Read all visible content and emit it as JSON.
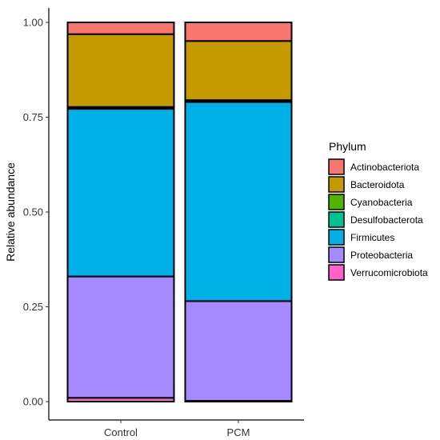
{
  "chart_data": {
    "type": "bar",
    "stacked": true,
    "title": "",
    "xlabel": "",
    "ylabel": "Relative abundance",
    "ylim": [
      0,
      1
    ],
    "yticks": [
      0,
      0.25,
      0.5,
      0.75,
      1
    ],
    "ytick_labels": [
      "0.00",
      "0.25",
      "0.50",
      "0.75",
      "1.00"
    ],
    "grid": false,
    "categories": [
      "Control",
      "PCM"
    ],
    "legend": {
      "title": "Phylum",
      "position": "right"
    },
    "series": [
      {
        "name": "Verrucomicrobiota",
        "color": "#FF61CC",
        "values": [
          0.01,
          0.002
        ]
      },
      {
        "name": "Proteobacteria",
        "color": "#A58AFF",
        "values": [
          0.32,
          0.263
        ]
      },
      {
        "name": "Firmicutes",
        "color": "#00B0E6",
        "values": [
          0.442,
          0.525
        ]
      },
      {
        "name": "Desulfobacterota",
        "color": "#00C094",
        "values": [
          0.002,
          0.002
        ]
      },
      {
        "name": "Cyanobacteria",
        "color": "#53B400",
        "values": [
          0.003,
          0.003
        ]
      },
      {
        "name": "Bacteroidota",
        "color": "#C49A00",
        "values": [
          0.192,
          0.156
        ]
      },
      {
        "name": "Actinobacteriota",
        "color": "#F8766D",
        "values": [
          0.031,
          0.049
        ]
      }
    ]
  }
}
